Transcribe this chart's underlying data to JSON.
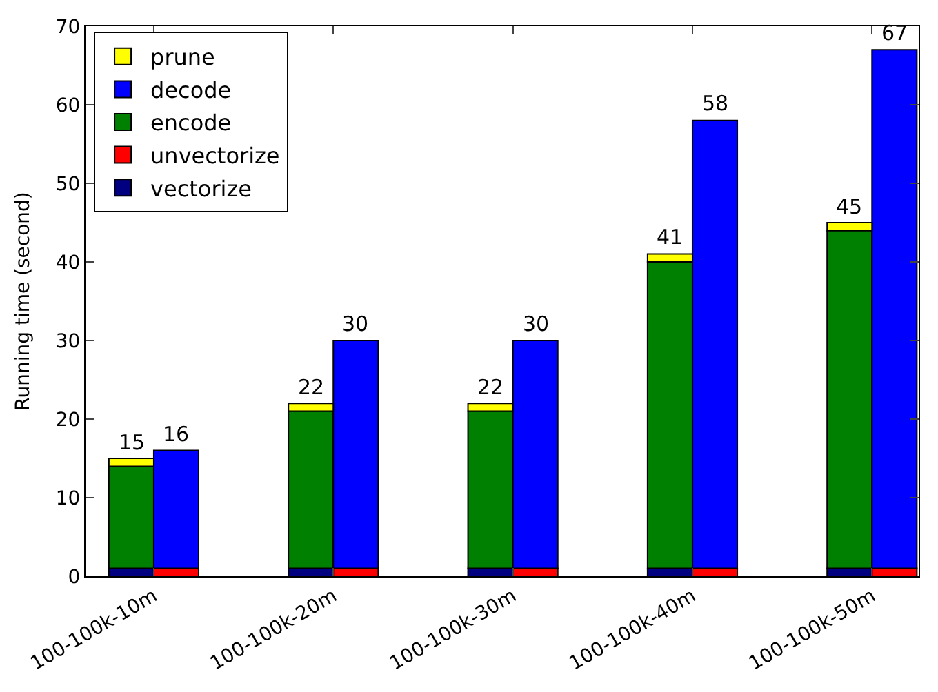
{
  "chart_data": {
    "type": "bar",
    "stacked": true,
    "ylabel": "Running time (second)",
    "categories": [
      "100-100k-10m",
      null,
      "100-100k-20m",
      null,
      "100-100k-30m",
      null,
      "100-100k-40m",
      null,
      "100-100k-50m",
      null
    ],
    "ylim": [
      0,
      70
    ],
    "yticks": [
      0,
      10,
      20,
      30,
      40,
      50,
      60,
      70
    ],
    "legend": "top left",
    "series": [
      {
        "name": "vectorize",
        "color": "#000080",
        "values": [
          1,
          null,
          1,
          null,
          1,
          null,
          1,
          null,
          1,
          null
        ]
      },
      {
        "name": "unvectorize",
        "color": "#ff0000",
        "values": [
          null,
          1,
          null,
          1,
          null,
          1,
          null,
          1,
          null,
          1
        ]
      },
      {
        "name": "encode",
        "color": "#008000",
        "values": [
          13,
          null,
          20,
          null,
          20,
          null,
          39,
          null,
          43,
          null
        ]
      },
      {
        "name": "decode",
        "color": "#0000ff",
        "values": [
          null,
          15,
          null,
          29,
          null,
          29,
          null,
          57,
          null,
          66
        ]
      },
      {
        "name": "prune",
        "color": "#ffff00",
        "values": [
          1,
          null,
          1,
          null,
          1,
          null,
          1,
          null,
          1,
          null
        ]
      }
    ],
    "totals": [
      "15",
      "16",
      "22",
      "30",
      "22",
      "30",
      "41",
      "58",
      "45",
      "67"
    ]
  }
}
